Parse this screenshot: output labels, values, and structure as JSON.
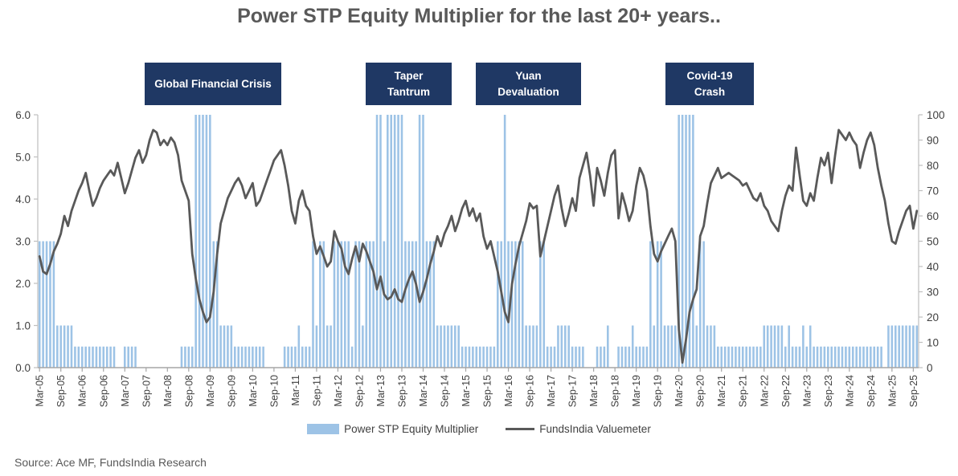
{
  "title": "Power STP Equity Multiplier for the last 20+ years..",
  "annotations": [
    {
      "label": "Global Financial Crisis"
    },
    {
      "label": "Taper Tantrum"
    },
    {
      "label": "Yuan Devaluation"
    },
    {
      "label": "Covid-19 Crash"
    }
  ],
  "source": "Source: Ace MF, FundsIndia Research",
  "colors": {
    "bar": "#9DC3E6",
    "line": "#595959",
    "callout_bg": "#1F3864",
    "axis": "#BFBFBF",
    "axis_text": "#404040"
  },
  "chart_data": {
    "type": "combo-bar-line",
    "title": "Power STP Equity Multiplier for the last 20+ years..",
    "start_month": "Mar-05",
    "end_month": "Oct-25",
    "grid": false,
    "legend_position": "bottom",
    "left_axis": {
      "min": 0,
      "max": 6,
      "ticks": [
        "6.0",
        "5.0",
        "4.0",
        "3.0",
        "2.0",
        "1.0",
        "0.0"
      ]
    },
    "right_axis": {
      "min": 0,
      "max": 100,
      "ticks": [
        "100",
        "90",
        "80",
        "70",
        "60",
        "50",
        "40",
        "30",
        "20",
        "10",
        "0"
      ]
    },
    "x_tick_labels": [
      "Mar-05",
      "Sep-05",
      "Mar-06",
      "Sep-06",
      "Mar-07",
      "Sep-07",
      "Mar-08",
      "Sep-08",
      "Mar-09",
      "Sep-09",
      "Mar-10",
      "Sep-10",
      "Mar-11",
      "Sep-11",
      "Mar-12",
      "Sep-12",
      "Mar-13",
      "Sep-13",
      "Mar-14",
      "Sep-14",
      "Mar-15",
      "Sep-15",
      "Mar-16",
      "Sep-16",
      "Mar-17",
      "Sep-17",
      "Mar-18",
      "Sep-18",
      "Mar-19",
      "Sep-19",
      "Mar-20",
      "Sep-20",
      "Mar-21",
      "Sep-21",
      "Mar-22",
      "Sep-22",
      "Mar-23",
      "Sep-23",
      "Mar-24",
      "Sep-24",
      "Mar-25",
      "Sep-25"
    ],
    "x_tick_every": 6,
    "series": [
      {
        "name": "Power STP Equity Multiplier",
        "type": "bar",
        "axis": "left",
        "color": "#9DC3E6",
        "values": [
          3,
          3,
          3,
          3,
          3,
          1,
          1,
          1,
          1,
          1,
          0.5,
          0.5,
          0.5,
          0.5,
          0.5,
          0.5,
          0.5,
          0.5,
          0.5,
          0.5,
          0.5,
          0.5,
          0,
          0,
          0.5,
          0.5,
          0.5,
          0.5,
          0,
          0,
          0,
          0,
          0,
          0,
          0,
          0,
          0,
          0,
          0,
          0,
          0.5,
          0.5,
          0.5,
          0.5,
          6,
          6,
          6,
          6,
          6,
          3,
          3,
          1,
          1,
          1,
          1,
          0.5,
          0.5,
          0.5,
          0.5,
          0.5,
          0.5,
          0.5,
          0.5,
          0.5,
          0,
          0,
          0,
          0,
          0,
          0.5,
          0.5,
          0.5,
          0.5,
          1,
          0.5,
          0.5,
          0.5,
          3,
          1,
          3,
          3,
          1,
          1,
          3,
          3,
          3,
          3,
          3,
          0.5,
          3,
          3,
          1,
          3,
          3,
          3,
          6,
          6,
          3,
          6,
          6,
          6,
          6,
          6,
          3,
          3,
          3,
          3,
          6,
          6,
          3,
          3,
          3,
          1,
          1,
          1,
          1,
          1,
          1,
          1,
          0.5,
          0.5,
          0.5,
          0.5,
          0.5,
          0.5,
          0.5,
          0.5,
          0.5,
          0.5,
          3,
          3,
          6,
          3,
          3,
          3,
          3,
          3,
          1,
          1,
          1,
          1,
          3,
          3,
          0.5,
          0.5,
          0.5,
          1,
          1,
          1,
          1,
          0.5,
          0.5,
          0.5,
          0.5,
          0,
          0,
          0,
          0.5,
          0.5,
          0.5,
          1,
          0,
          0,
          0.5,
          0.5,
          0.5,
          0.5,
          1,
          0.5,
          0.5,
          0.5,
          0.5,
          3,
          1,
          3,
          3,
          1,
          1,
          1,
          1,
          6,
          6,
          6,
          6,
          6,
          1,
          3,
          3,
          1,
          1,
          1,
          0.5,
          0.5,
          0.5,
          0.5,
          0.5,
          0.5,
          0.5,
          0.5,
          0.5,
          0.5,
          0.5,
          0.5,
          0.5,
          1,
          1,
          1,
          1,
          1,
          1,
          0.5,
          1,
          0.5,
          0.5,
          0.5,
          1,
          0.5,
          1,
          0.5,
          0.5,
          0.5,
          0.5,
          0.5,
          0.5,
          0.5,
          0.5,
          0.5,
          0.5,
          0.5,
          0.5,
          0.5,
          0.5,
          0.5,
          0.5,
          0.5,
          0.5,
          0.5,
          0.5,
          0,
          1,
          1,
          1,
          1,
          1,
          1,
          1,
          1,
          1
        ]
      },
      {
        "name": "FundsIndia Valuemeter",
        "type": "line",
        "axis": "right",
        "color": "#595959",
        "values": [
          44,
          38,
          37,
          41,
          46,
          49,
          53,
          60,
          56,
          62,
          66,
          70,
          73,
          77,
          70,
          64,
          67,
          71,
          74,
          76,
          78,
          76,
          81,
          75,
          69,
          73,
          78,
          83,
          86,
          81,
          84,
          90,
          94,
          93,
          88,
          90,
          88,
          91,
          89,
          84,
          74,
          70,
          66,
          45,
          35,
          27,
          22,
          18,
          20,
          30,
          45,
          57,
          62,
          67,
          70,
          73,
          75,
          72,
          67,
          70,
          73,
          64,
          66,
          70,
          74,
          78,
          82,
          84,
          86,
          80,
          72,
          62,
          57,
          66,
          70,
          64,
          62,
          52,
          45,
          48,
          44,
          40,
          42,
          54,
          50,
          47,
          40,
          37,
          43,
          48,
          42,
          49,
          46,
          42,
          38,
          31,
          36,
          29,
          27,
          28,
          31,
          27,
          26,
          31,
          35,
          38,
          33,
          26,
          30,
          35,
          41,
          46,
          52,
          48,
          53,
          56,
          60,
          54,
          58,
          63,
          66,
          60,
          63,
          58,
          61,
          52,
          47,
          50,
          44,
          38,
          30,
          22,
          18,
          33,
          41,
          48,
          53,
          58,
          65,
          63,
          64,
          44,
          50,
          56,
          62,
          68,
          72,
          63,
          56,
          61,
          67,
          62,
          75,
          80,
          85,
          76,
          64,
          79,
          74,
          68,
          77,
          84,
          86,
          59,
          69,
          64,
          58,
          62,
          72,
          79,
          76,
          70,
          56,
          45,
          42,
          46,
          49,
          52,
          55,
          50,
          15,
          2,
          11,
          22,
          27,
          31,
          52,
          56,
          65,
          73,
          76,
          79,
          75,
          76,
          77,
          76,
          75,
          74,
          72,
          73,
          70,
          67,
          66,
          69,
          64,
          62,
          58,
          56,
          54,
          62,
          68,
          72,
          70,
          87,
          76,
          66,
          64,
          69,
          66,
          75,
          83,
          80,
          85,
          73,
          84,
          94,
          92,
          90,
          93,
          90,
          88,
          79,
          85,
          90,
          93,
          88,
          79,
          72,
          66,
          57,
          50,
          49,
          54,
          58,
          62,
          64,
          55,
          62
        ]
      }
    ]
  }
}
